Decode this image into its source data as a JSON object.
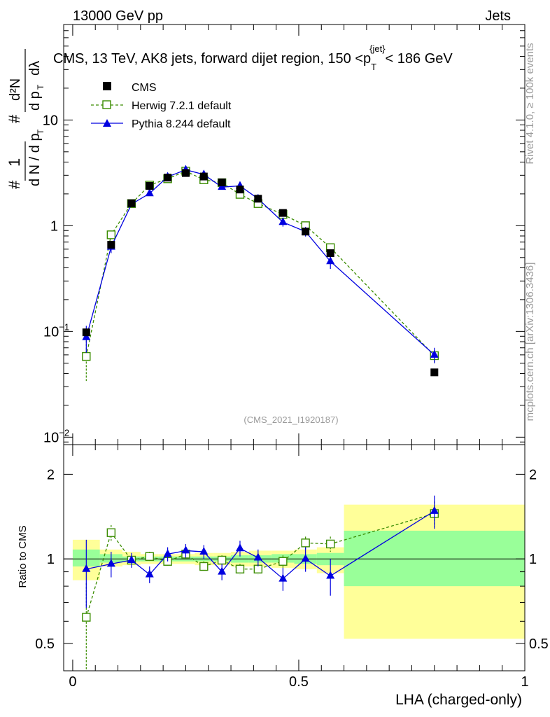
{
  "header": {
    "left": "13000 GeV pp",
    "right": "Jets"
  },
  "side_labels": {
    "rivet": "Rivet 4.1.0, ≥ 100k events",
    "mcplots": "mcplots.cern.ch [arXiv:1306.3436]"
  },
  "watermark": "(CMS_2021_I1920187)",
  "chart_data": [
    {
      "type": "line",
      "title_parts": {
        "main": "CMS, 13 TeV, AK8 jets, forward dijet region, 150 <p",
        "sub": "T",
        "sup": "{jet}",
        "end": "< 186 GeV"
      },
      "ylabel": "1/dN/dpT  d²N/dpT dλ",
      "ylabel_parts": {
        "n1": "1",
        "d1": "d N / d p",
        "s1": "T",
        "n2": "d²N",
        "d2": "d p",
        "s2": "T",
        "d3": "dλ",
        "hash": "#"
      },
      "yscale": "log",
      "ylim": [
        0.0085,
        80
      ],
      "xlim": [
        -0.02,
        1.0
      ],
      "y_ticks": [
        {
          "value": 10,
          "label": "10"
        },
        {
          "value": 1,
          "label": "1"
        },
        {
          "value": 0.1,
          "label": "10",
          "exp": "−1"
        },
        {
          "value": 0.01,
          "label": "10",
          "exp": "−2"
        }
      ],
      "legend": [
        {
          "label": "CMS",
          "style": "cms"
        },
        {
          "label": "Herwig 7.2.1 default",
          "style": "herwig"
        },
        {
          "label": "Pythia 8.244 default",
          "style": "pythia"
        }
      ],
      "series": [
        {
          "name": "CMS",
          "color": "#000000",
          "x": [
            0.03,
            0.085,
            0.13,
            0.17,
            0.21,
            0.25,
            0.29,
            0.33,
            0.37,
            0.41,
            0.465,
            0.515,
            0.57,
            0.8
          ],
          "y": [
            0.098,
            0.66,
            1.63,
            2.38,
            2.85,
            3.15,
            2.92,
            2.57,
            2.2,
            1.8,
            1.32,
            0.88,
            0.55,
            0.041
          ]
        },
        {
          "name": "Herwig 7.2.1 default",
          "color": "#3a8c00",
          "x": [
            0.03,
            0.085,
            0.13,
            0.17,
            0.21,
            0.25,
            0.29,
            0.33,
            0.37,
            0.41,
            0.465,
            0.515,
            0.57,
            0.8
          ],
          "y": [
            0.058,
            0.82,
            1.62,
            2.42,
            2.78,
            3.28,
            2.72,
            2.55,
            1.98,
            1.62,
            1.28,
            1.0,
            0.62,
            0.059
          ],
          "err": [
            0.024,
            0.07,
            0.06,
            0.08,
            0.09,
            0.1,
            0.1,
            0.09,
            0.07,
            0.06,
            0.05,
            0.05,
            0.05,
            0.008
          ]
        },
        {
          "name": "Pythia 8.244 default",
          "color": "#0000e0",
          "x": [
            0.03,
            0.085,
            0.13,
            0.17,
            0.21,
            0.25,
            0.29,
            0.33,
            0.37,
            0.41,
            0.465,
            0.515,
            0.57,
            0.8
          ],
          "y": [
            0.088,
            0.63,
            1.6,
            2.02,
            2.9,
            3.38,
            3.05,
            2.32,
            2.38,
            1.8,
            1.08,
            0.88,
            0.46,
            0.06
          ],
          "err": [
            0.025,
            0.08,
            0.09,
            0.09,
            0.15,
            0.15,
            0.15,
            0.12,
            0.15,
            0.12,
            0.1,
            0.09,
            0.07,
            0.01
          ]
        }
      ]
    },
    {
      "type": "line",
      "ylabel": "Ratio to CMS",
      "xlabel": "LHA (charged-only)",
      "yscale": "log",
      "ylim": [
        0.4,
        2.55
      ],
      "xlim": [
        -0.02,
        1.0
      ],
      "y_ticks": [
        {
          "value": 2,
          "label": "2"
        },
        {
          "value": 1,
          "label": "1"
        },
        {
          "value": 0.5,
          "label": "0.5"
        }
      ],
      "x_ticks": [
        {
          "value": 0,
          "label": "0"
        },
        {
          "value": 0.5,
          "label": "0.5"
        },
        {
          "value": 1,
          "label": "1"
        }
      ],
      "bands": [
        {
          "x0": 0.0,
          "x1": 0.06,
          "stat": [
            0.94,
            1.08
          ],
          "tot": [
            0.84,
            1.17
          ]
        },
        {
          "x0": 0.06,
          "x1": 0.11,
          "stat": [
            0.97,
            1.04
          ],
          "tot": [
            0.94,
            1.08
          ]
        },
        {
          "x0": 0.11,
          "x1": 0.15,
          "stat": [
            0.98,
            1.02
          ],
          "tot": [
            0.95,
            1.06
          ]
        },
        {
          "x0": 0.15,
          "x1": 0.19,
          "stat": [
            0.98,
            1.02
          ],
          "tot": [
            0.96,
            1.04
          ]
        },
        {
          "x0": 0.19,
          "x1": 0.23,
          "stat": [
            0.98,
            1.02
          ],
          "tot": [
            0.96,
            1.04
          ]
        },
        {
          "x0": 0.23,
          "x1": 0.27,
          "stat": [
            0.98,
            1.02
          ],
          "tot": [
            0.96,
            1.04
          ]
        },
        {
          "x0": 0.27,
          "x1": 0.31,
          "stat": [
            0.98,
            1.02
          ],
          "tot": [
            0.95,
            1.05
          ]
        },
        {
          "x0": 0.31,
          "x1": 0.35,
          "stat": [
            0.98,
            1.02
          ],
          "tot": [
            0.95,
            1.05
          ]
        },
        {
          "x0": 0.35,
          "x1": 0.39,
          "stat": [
            0.97,
            1.03
          ],
          "tot": [
            0.94,
            1.06
          ]
        },
        {
          "x0": 0.39,
          "x1": 0.44,
          "stat": [
            0.97,
            1.03
          ],
          "tot": [
            0.94,
            1.07
          ]
        },
        {
          "x0": 0.44,
          "x1": 0.49,
          "stat": [
            0.97,
            1.04
          ],
          "tot": [
            0.93,
            1.07
          ]
        },
        {
          "x0": 0.49,
          "x1": 0.54,
          "stat": [
            0.96,
            1.04
          ],
          "tot": [
            0.92,
            1.08
          ]
        },
        {
          "x0": 0.54,
          "x1": 0.6,
          "stat": [
            0.95,
            1.05
          ],
          "tot": [
            0.89,
            1.1
          ]
        },
        {
          "x0": 0.6,
          "x1": 1.0,
          "stat": [
            0.8,
            1.26
          ],
          "tot": [
            0.52,
            1.56
          ]
        }
      ],
      "series": [
        {
          "name": "Herwig 7.2.1 default",
          "color": "#3a8c00",
          "x": [
            0.03,
            0.085,
            0.13,
            0.17,
            0.21,
            0.25,
            0.29,
            0.33,
            0.37,
            0.41,
            0.465,
            0.515,
            0.57,
            0.8
          ],
          "y": [
            0.62,
            1.24,
            0.99,
            1.02,
            0.98,
            1.04,
            0.94,
            0.99,
            0.92,
            0.92,
            0.98,
            1.14,
            1.13,
            1.45
          ],
          "err": [
            0.2,
            0.08,
            0.04,
            0.04,
            0.04,
            0.04,
            0.04,
            0.04,
            0.04,
            0.04,
            0.05,
            0.06,
            0.07,
            0.15
          ]
        },
        {
          "name": "Pythia 8.244 default",
          "color": "#0000e0",
          "x": [
            0.03,
            0.085,
            0.13,
            0.17,
            0.21,
            0.25,
            0.29,
            0.33,
            0.37,
            0.41,
            0.465,
            0.515,
            0.57,
            0.8
          ],
          "y": [
            0.92,
            0.96,
            0.99,
            0.88,
            1.04,
            1.07,
            1.06,
            0.9,
            1.09,
            1.01,
            0.85,
            1.0,
            0.87,
            1.48
          ],
          "err": [
            0.25,
            0.1,
            0.06,
            0.06,
            0.06,
            0.06,
            0.06,
            0.06,
            0.07,
            0.07,
            0.08,
            0.1,
            0.13,
            0.2
          ]
        }
      ]
    }
  ]
}
